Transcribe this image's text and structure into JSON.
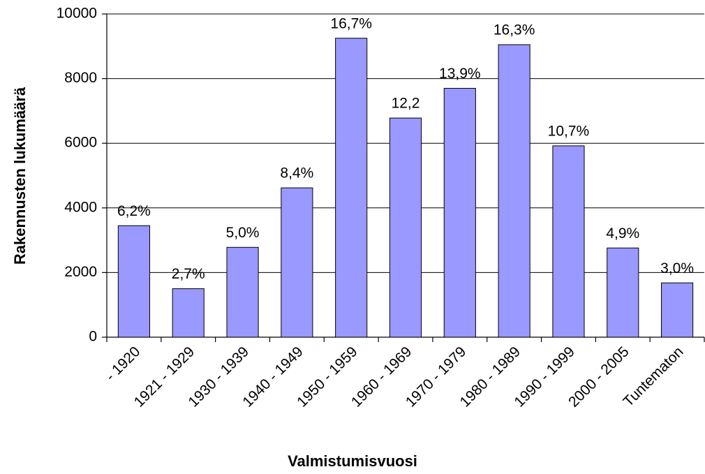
{
  "chart_data": {
    "type": "bar",
    "x_label": "Valmistumisvuosi",
    "y_label": "Rakennusten lukumäärä",
    "categories": [
      "- 1920",
      "1921 - 1929",
      "1930 - 1939",
      "1940 - 1949",
      "1950 - 1959",
      "1960 - 1969",
      "1970 - 1979",
      "1980 - 1989",
      "1990 - 1999",
      "2000 - 2005",
      "Tuntematon"
    ],
    "values": [
      3450,
      1500,
      2780,
      4620,
      9250,
      6780,
      7700,
      9050,
      5920,
      2760,
      1680
    ],
    "annotations": [
      "6,2%",
      "2,7%",
      "5,0%",
      "8,4%",
      "16,7%",
      "12,2",
      "13,9%",
      "16,3%",
      "10,7%",
      "4,9%",
      "3,0%"
    ],
    "color": "#9999ff",
    "ylim": [
      0,
      10000
    ],
    "yticks": [
      0,
      2000,
      4000,
      6000,
      8000,
      10000
    ],
    "grid": true
  }
}
